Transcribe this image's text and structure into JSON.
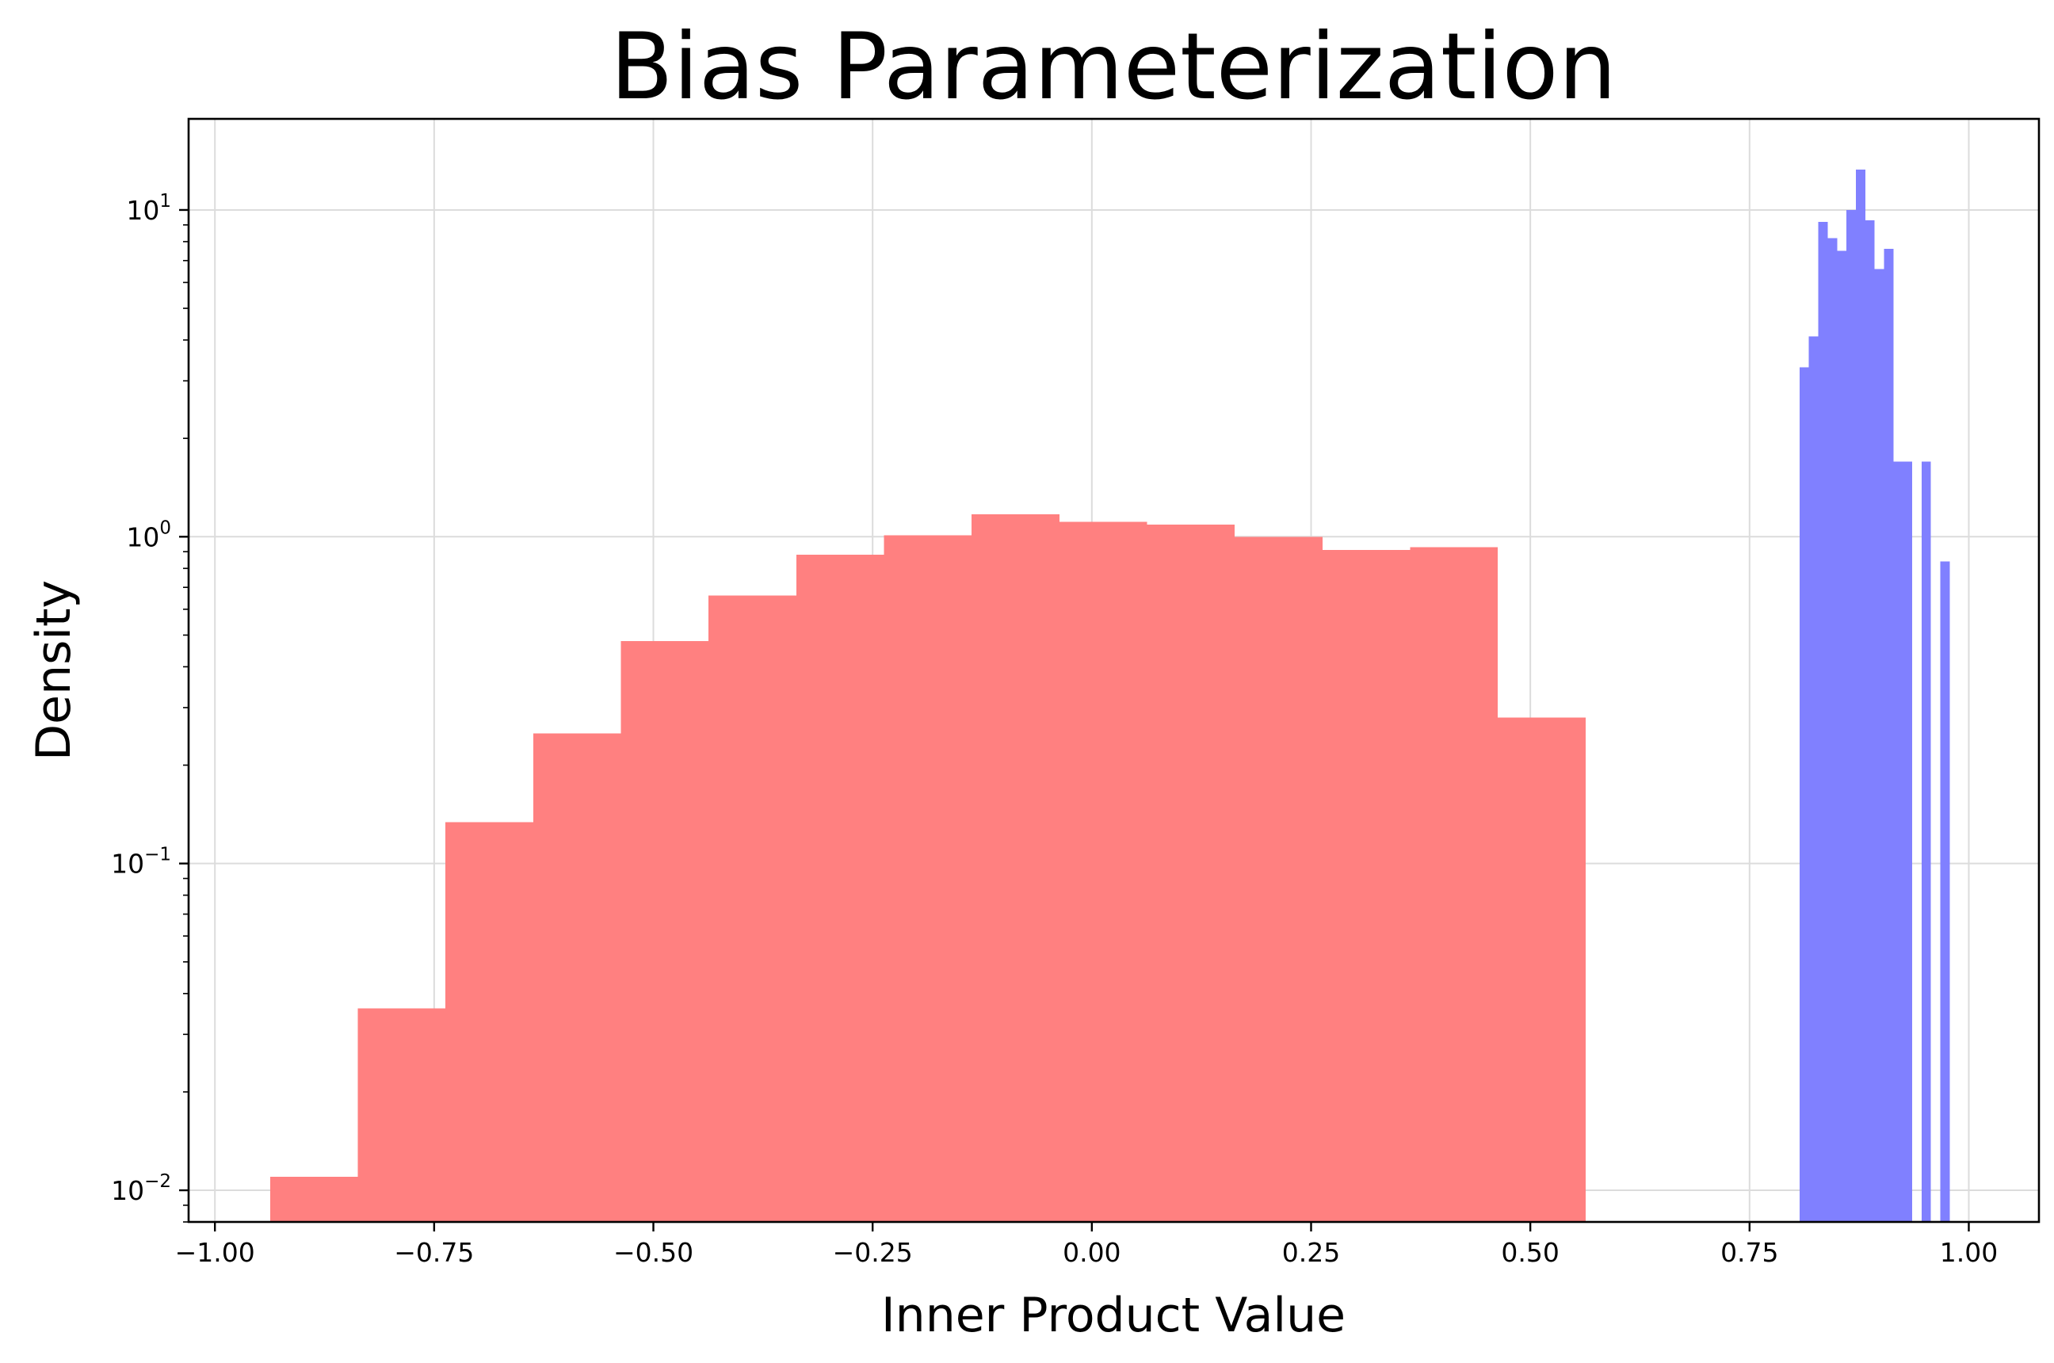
{
  "chart_data": {
    "type": "histogram",
    "title": "Bias Parameterization",
    "xlabel": "Inner Product Value",
    "ylabel": "Density",
    "xlim": [
      -1.03,
      1.08
    ],
    "ylim": [
      0.008,
      19
    ],
    "yscale": "log",
    "grid": true,
    "legend": "none",
    "x_ticks": [
      -1.0,
      -0.75,
      -0.5,
      -0.25,
      0.0,
      0.25,
      0.5,
      0.75,
      1.0
    ],
    "x_tick_labels": [
      "−1.00",
      "−0.75",
      "−0.50",
      "−0.25",
      "0.00",
      "0.25",
      "0.50",
      "0.75",
      "1.00"
    ],
    "y_ticks": [
      {
        "value": 0.01,
        "base": "10",
        "exp": "−2"
      },
      {
        "value": 0.1,
        "base": "10",
        "exp": "−1"
      },
      {
        "value": 1,
        "base": "10",
        "exp": "0"
      },
      {
        "value": 10,
        "base": "10",
        "exp": "1"
      }
    ],
    "series": [
      {
        "color": "#ff8080",
        "bins": [
          {
            "x0": -0.937,
            "x1": -0.837,
            "value": 0.011
          },
          {
            "x0": -0.837,
            "x1": -0.737,
            "value": 0.036
          },
          {
            "x0": -0.737,
            "x1": -0.637,
            "value": 0.134
          },
          {
            "x0": -0.637,
            "x1": -0.537,
            "value": 0.25
          },
          {
            "x0": -0.537,
            "x1": -0.437,
            "value": 0.48
          },
          {
            "x0": -0.437,
            "x1": -0.337,
            "value": 0.66
          },
          {
            "x0": -0.337,
            "x1": -0.237,
            "value": 0.88
          },
          {
            "x0": -0.237,
            "x1": -0.137,
            "value": 1.01
          },
          {
            "x0": -0.137,
            "x1": -0.037,
            "value": 1.17
          },
          {
            "x0": -0.037,
            "x1": 0.063,
            "value": 1.11
          },
          {
            "x0": 0.063,
            "x1": 0.163,
            "value": 1.09
          },
          {
            "x0": 0.163,
            "x1": 0.263,
            "value": 1.0
          },
          {
            "x0": 0.263,
            "x1": 0.363,
            "value": 0.91
          },
          {
            "x0": 0.363,
            "x1": 0.463,
            "value": 0.93
          },
          {
            "x0": 0.463,
            "x1": 0.563,
            "value": 0.28
          }
        ]
      },
      {
        "color": "#8080ff",
        "bins": [
          {
            "x0": 0.807,
            "x1": 0.8177,
            "value": 3.3
          },
          {
            "x0": 0.8177,
            "x1": 0.8284,
            "value": 4.1
          },
          {
            "x0": 0.8284,
            "x1": 0.8391,
            "value": 9.2
          },
          {
            "x0": 0.8391,
            "x1": 0.8498,
            "value": 8.2
          },
          {
            "x0": 0.8498,
            "x1": 0.8605,
            "value": 7.5
          },
          {
            "x0": 0.8605,
            "x1": 0.8712,
            "value": 10.0
          },
          {
            "x0": 0.8712,
            "x1": 0.8819,
            "value": 13.3
          },
          {
            "x0": 0.8819,
            "x1": 0.8926,
            "value": 9.3
          },
          {
            "x0": 0.8926,
            "x1": 0.9033,
            "value": 6.6
          },
          {
            "x0": 0.9033,
            "x1": 0.914,
            "value": 7.6
          },
          {
            "x0": 0.914,
            "x1": 0.9247,
            "value": 1.7
          },
          {
            "x0": 0.9247,
            "x1": 0.9354,
            "value": 1.7
          },
          {
            "x0": 0.9461,
            "x1": 0.9568,
            "value": 1.7
          },
          {
            "x0": 0.9675,
            "x1": 0.9782,
            "value": 0.84
          }
        ]
      }
    ]
  }
}
